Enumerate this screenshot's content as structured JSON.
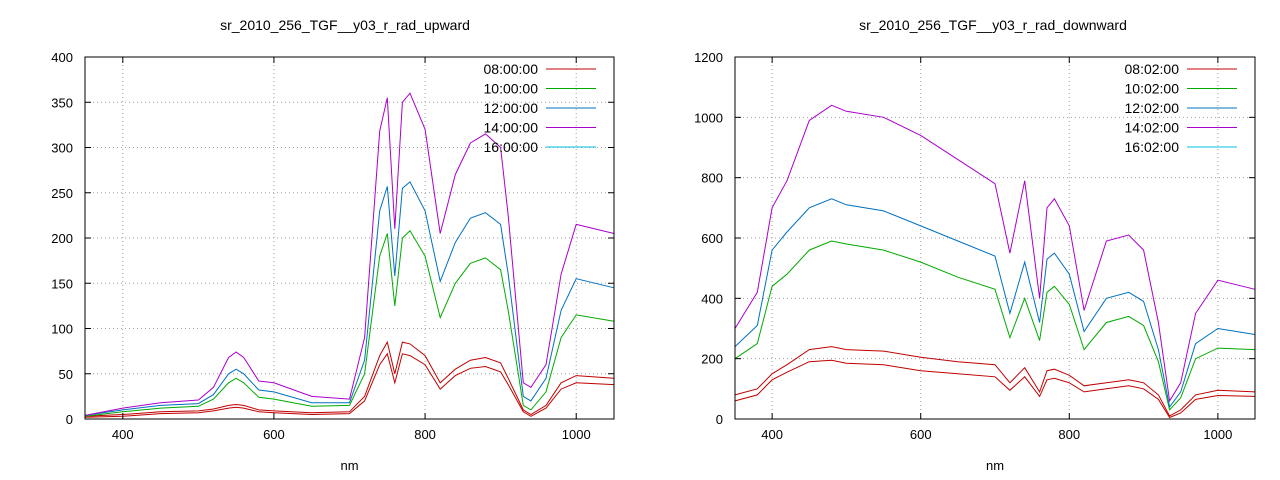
{
  "chart_data": [
    {
      "type": "line",
      "title": "sr_2010_256_TGF__y03_r_rad_upward",
      "xlabel": "nm",
      "ylabel": "",
      "xlim": [
        350,
        1050
      ],
      "ylim": [
        0,
        400
      ],
      "xticks": [
        400,
        600,
        800,
        1000
      ],
      "yticks": [
        0,
        50,
        100,
        150,
        200,
        250,
        300,
        350,
        400
      ],
      "grid": true,
      "legend_position": "top-right",
      "series": [
        {
          "name": "08:00:00",
          "color": "#c00000",
          "x": [
            350,
            400,
            450,
            500,
            520,
            540,
            550,
            560,
            580,
            600,
            650,
            700,
            720,
            740,
            750,
            760,
            770,
            780,
            800,
            820,
            840,
            860,
            880,
            900,
            910,
            930,
            940,
            960,
            980,
            1000,
            1050
          ],
          "y": [
            3,
            5,
            8,
            9,
            11,
            15,
            16,
            15,
            10,
            9,
            7,
            8,
            25,
            70,
            85,
            50,
            85,
            83,
            70,
            40,
            55,
            65,
            68,
            62,
            45,
            10,
            5,
            15,
            40,
            48,
            45
          ]
        },
        {
          "name": "",
          "color": "#c00000",
          "x": [
            350,
            400,
            450,
            500,
            520,
            540,
            550,
            560,
            580,
            600,
            650,
            700,
            720,
            740,
            750,
            760,
            770,
            780,
            800,
            820,
            840,
            860,
            880,
            900,
            910,
            930,
            940,
            960,
            980,
            1000,
            1050
          ],
          "y": [
            2,
            3,
            6,
            7,
            9,
            12,
            13,
            12,
            8,
            7,
            5,
            6,
            20,
            60,
            72,
            40,
            72,
            70,
            60,
            33,
            48,
            56,
            58,
            52,
            38,
            8,
            3,
            12,
            33,
            40,
            38
          ]
        },
        {
          "name": "10:00:00",
          "color": "#00aa00",
          "x": [
            350,
            400,
            450,
            500,
            520,
            540,
            550,
            560,
            580,
            600,
            650,
            700,
            720,
            740,
            750,
            760,
            770,
            780,
            800,
            820,
            840,
            860,
            880,
            900,
            910,
            930,
            940,
            960,
            980,
            1000,
            1050
          ],
          "y": [
            3,
            8,
            12,
            14,
            22,
            40,
            45,
            40,
            24,
            22,
            14,
            15,
            50,
            180,
            205,
            125,
            200,
            208,
            180,
            112,
            150,
            172,
            178,
            165,
            120,
            15,
            10,
            30,
            90,
            115,
            108
          ]
        },
        {
          "name": "12:00:00",
          "color": "#0070c0",
          "x": [
            350,
            400,
            450,
            500,
            520,
            540,
            550,
            560,
            580,
            600,
            650,
            700,
            720,
            740,
            750,
            760,
            770,
            780,
            800,
            820,
            840,
            860,
            880,
            900,
            910,
            930,
            940,
            960,
            980,
            1000,
            1050
          ],
          "y": [
            4,
            10,
            15,
            17,
            27,
            50,
            55,
            50,
            32,
            30,
            18,
            18,
            65,
            230,
            257,
            158,
            255,
            262,
            230,
            152,
            195,
            222,
            228,
            215,
            160,
            25,
            20,
            45,
            120,
            155,
            145
          ]
        },
        {
          "name": "14:00:00",
          "color": "#aa00cc",
          "x": [
            350,
            400,
            450,
            500,
            520,
            540,
            550,
            560,
            580,
            600,
            650,
            700,
            720,
            740,
            750,
            760,
            770,
            780,
            800,
            820,
            840,
            860,
            880,
            900,
            910,
            930,
            940,
            960,
            980,
            1000,
            1050
          ],
          "y": [
            4,
            12,
            18,
            21,
            35,
            68,
            74,
            68,
            42,
            40,
            25,
            22,
            90,
            318,
            355,
            210,
            350,
            360,
            320,
            205,
            270,
            305,
            315,
            300,
            225,
            40,
            35,
            60,
            160,
            215,
            205
          ]
        },
        {
          "name": "16:00:00",
          "color": "#00c0e0",
          "x": [],
          "y": []
        }
      ]
    },
    {
      "type": "line",
      "title": "sr_2010_256_TGF__y03_r_rad_downward",
      "xlabel": "nm",
      "ylabel": "",
      "xlim": [
        350,
        1050
      ],
      "ylim": [
        0,
        1200
      ],
      "xticks": [
        400,
        600,
        800,
        1000
      ],
      "yticks": [
        0,
        200,
        400,
        600,
        800,
        1000,
        1200
      ],
      "grid": true,
      "legend_position": "top-right",
      "series": [
        {
          "name": "08:02:00",
          "color": "#c00000",
          "x": [
            350,
            380,
            400,
            420,
            450,
            480,
            500,
            550,
            600,
            650,
            700,
            720,
            740,
            760,
            770,
            780,
            800,
            820,
            850,
            880,
            900,
            920,
            935,
            950,
            970,
            1000,
            1050
          ],
          "y": [
            80,
            100,
            150,
            180,
            230,
            240,
            230,
            225,
            205,
            190,
            180,
            120,
            170,
            90,
            160,
            165,
            145,
            110,
            120,
            130,
            120,
            80,
            10,
            30,
            80,
            95,
            90
          ]
        },
        {
          "name": "",
          "color": "#c00000",
          "x": [
            350,
            380,
            400,
            420,
            450,
            480,
            500,
            550,
            600,
            650,
            700,
            720,
            740,
            760,
            770,
            780,
            800,
            820,
            850,
            880,
            900,
            920,
            935,
            950,
            970,
            1000,
            1050
          ],
          "y": [
            60,
            80,
            130,
            155,
            190,
            195,
            185,
            180,
            160,
            150,
            140,
            95,
            140,
            75,
            130,
            135,
            120,
            90,
            100,
            110,
            100,
            65,
            5,
            20,
            65,
            78,
            75
          ]
        },
        {
          "name": "10:02:00",
          "color": "#00aa00",
          "x": [
            350,
            380,
            400,
            420,
            450,
            480,
            500,
            550,
            600,
            650,
            700,
            720,
            740,
            760,
            770,
            780,
            800,
            820,
            850,
            880,
            900,
            920,
            935,
            950,
            970,
            1000,
            1050
          ],
          "y": [
            200,
            250,
            440,
            480,
            560,
            590,
            580,
            560,
            520,
            470,
            430,
            270,
            400,
            260,
            420,
            440,
            380,
            230,
            320,
            340,
            310,
            190,
            30,
            70,
            200,
            235,
            230
          ]
        },
        {
          "name": "12:02:00",
          "color": "#0070c0",
          "x": [
            350,
            380,
            400,
            420,
            450,
            480,
            500,
            550,
            600,
            650,
            700,
            720,
            740,
            760,
            770,
            780,
            800,
            820,
            850,
            880,
            900,
            920,
            935,
            950,
            970,
            1000,
            1050
          ],
          "y": [
            240,
            310,
            560,
            620,
            700,
            730,
            710,
            690,
            640,
            590,
            540,
            350,
            520,
            320,
            530,
            550,
            480,
            290,
            400,
            420,
            390,
            230,
            40,
            90,
            250,
            300,
            280
          ]
        },
        {
          "name": "14:02:00",
          "color": "#aa00cc",
          "x": [
            350,
            380,
            400,
            420,
            450,
            480,
            500,
            550,
            600,
            650,
            700,
            720,
            740,
            760,
            770,
            780,
            800,
            820,
            850,
            880,
            900,
            920,
            935,
            950,
            970,
            1000,
            1050
          ],
          "y": [
            300,
            420,
            700,
            790,
            990,
            1040,
            1020,
            1000,
            940,
            860,
            780,
            550,
            790,
            400,
            700,
            730,
            640,
            360,
            590,
            610,
            560,
            320,
            60,
            120,
            350,
            460,
            430
          ]
        },
        {
          "name": "16:02:00",
          "color": "#00c0e0",
          "x": [],
          "y": []
        }
      ]
    }
  ]
}
